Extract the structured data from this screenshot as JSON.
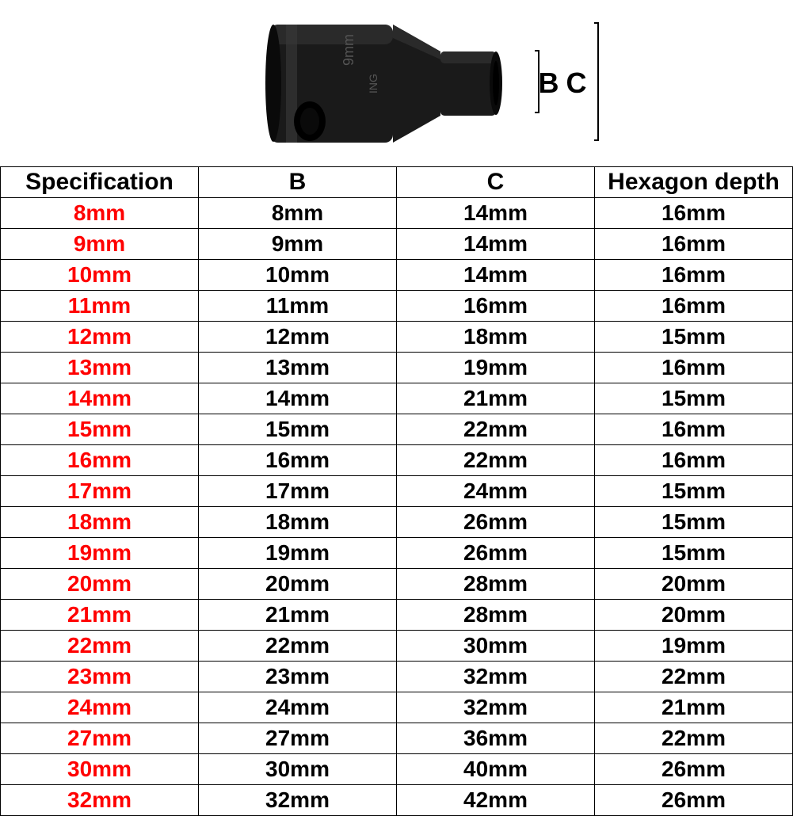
{
  "diagram": {
    "label_b": "B",
    "label_c": "C",
    "socket_color": "#1a1a1a",
    "socket_highlight": "#3a3a3a"
  },
  "table": {
    "columns": [
      "Specification",
      "B",
      "C",
      "Hexagon depth"
    ],
    "header_color": "#000000",
    "header_fontsize": 30,
    "spec_col_color": "#ff0000",
    "val_col_color": "#000000",
    "cell_fontsize": 28,
    "border_color": "#000000",
    "background_color": "#ffffff",
    "rows": [
      [
        "8mm",
        "8mm",
        "14mm",
        "16mm"
      ],
      [
        "9mm",
        "9mm",
        "14mm",
        "16mm"
      ],
      [
        "10mm",
        "10mm",
        "14mm",
        "16mm"
      ],
      [
        "11mm",
        "11mm",
        "16mm",
        "16mm"
      ],
      [
        "12mm",
        "12mm",
        "18mm",
        "15mm"
      ],
      [
        "13mm",
        "13mm",
        "19mm",
        "16mm"
      ],
      [
        "14mm",
        "14mm",
        "21mm",
        "15mm"
      ],
      [
        "15mm",
        "15mm",
        "22mm",
        "16mm"
      ],
      [
        "16mm",
        "16mm",
        "22mm",
        "16mm"
      ],
      [
        "17mm",
        "17mm",
        "24mm",
        "15mm"
      ],
      [
        "18mm",
        "18mm",
        "26mm",
        "15mm"
      ],
      [
        "19mm",
        "19mm",
        "26mm",
        "15mm"
      ],
      [
        "20mm",
        "20mm",
        "28mm",
        "20mm"
      ],
      [
        "21mm",
        "21mm",
        "28mm",
        "20mm"
      ],
      [
        "22mm",
        "22mm",
        "30mm",
        "19mm"
      ],
      [
        "23mm",
        "23mm",
        "32mm",
        "22mm"
      ],
      [
        "24mm",
        "24mm",
        "32mm",
        "21mm"
      ],
      [
        "27mm",
        "27mm",
        "36mm",
        "22mm"
      ],
      [
        "30mm",
        "30mm",
        "40mm",
        "26mm"
      ],
      [
        "32mm",
        "32mm",
        "42mm",
        "26mm"
      ]
    ]
  }
}
